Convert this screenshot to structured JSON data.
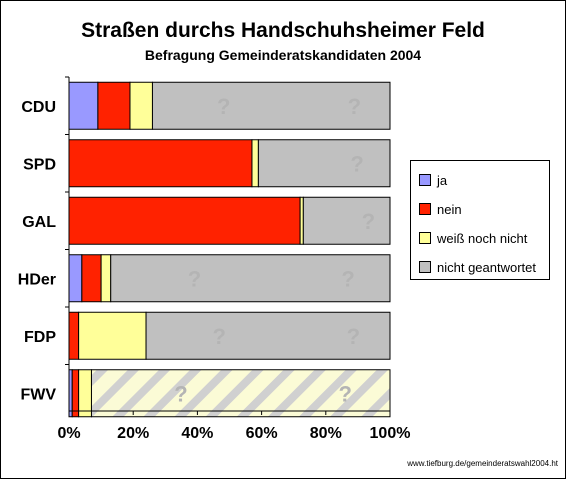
{
  "chart_data": {
    "type": "bar",
    "orientation": "horizontal",
    "stacked": true,
    "title": "Straßen durchs Handschuhsheimer Feld",
    "subtitle": "Befragung Gemeinderatskandidaten 2004",
    "categories": [
      "CDU",
      "SPD",
      "GAL",
      "HDer",
      "FDP",
      "FWV"
    ],
    "series": [
      {
        "name": "ja",
        "color": "#9999ff",
        "values": [
          9,
          0,
          0,
          4,
          0,
          1
        ]
      },
      {
        "name": "nein",
        "color": "#ff2200",
        "values": [
          10,
          57,
          72,
          6,
          3,
          2
        ]
      },
      {
        "name": "weiß noch nicht",
        "color": "#ffff99",
        "values": [
          7,
          2,
          1,
          3,
          21,
          4
        ]
      },
      {
        "name": "nicht geantwortet",
        "color": "#c0c0c0",
        "values": [
          74,
          41,
          27,
          87,
          76,
          93
        ]
      }
    ],
    "xlim": [
      0,
      100
    ],
    "x_ticks": [
      "0%",
      "20%",
      "40%",
      "60%",
      "80%",
      "100%"
    ],
    "legend_position": "right",
    "annotation_symbol": "?"
  },
  "footer": "www.tiefburg.de/gemeinderatswahl2004.ht"
}
